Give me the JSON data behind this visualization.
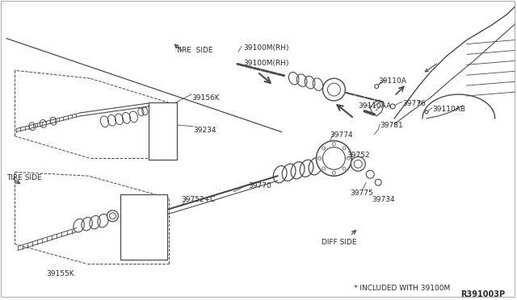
{
  "bg_color": "#ffffff",
  "line_color": "#4a4a4a",
  "text_color": "#2a2a2a",
  "fig_width": 6.4,
  "fig_height": 3.72,
  "dpi": 100,
  "labels": {
    "tire_side_upper": "TIRE  SIDE",
    "tire_side_lower": "TIRE SIDE",
    "diff_side": "DIFF SIDE",
    "included_note": "* INCLUDED WITH 39100M",
    "diagram_id": "R391003P",
    "p39100M_RH_upper": "39100M(RH)",
    "p39100M_RH_lower": "39100M(RH)",
    "p39156K": "39156K",
    "p39234": "39234",
    "p39770": "39770",
    "p39752C": "39752+C",
    "p39774": "39774",
    "p39752": "39752",
    "p39775": "39775",
    "p39734": "39734",
    "p39155K": "39155K",
    "p39110A": "39110A",
    "p39110AA": "39110AA",
    "p39110AB": "39110AB",
    "p39776": "39776",
    "p39781": "39781"
  }
}
